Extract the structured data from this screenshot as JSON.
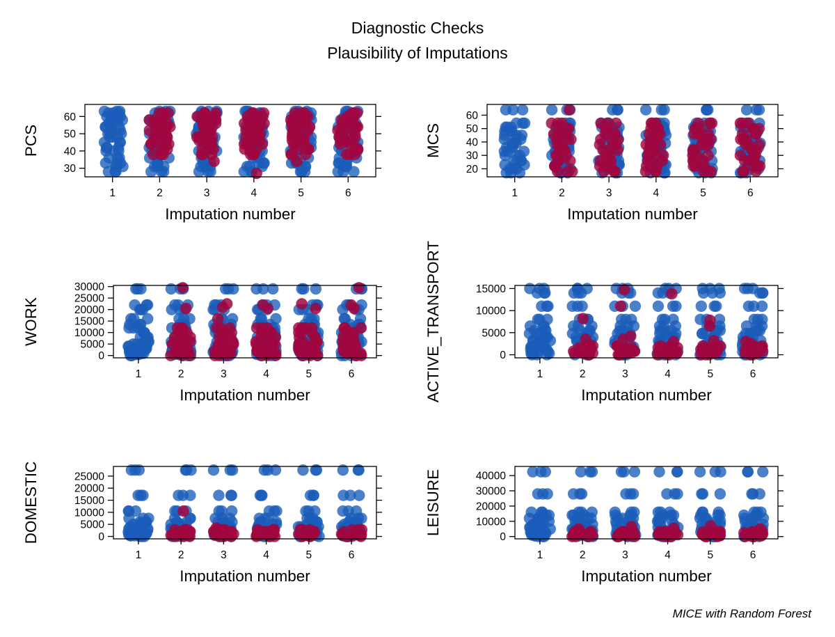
{
  "header": {
    "title": "Diagnostic Checks",
    "subtitle": "Plausibility of Imputations"
  },
  "footer": {
    "caption": "MICE with Random Forest"
  },
  "colors": {
    "observed": "#1a5cb8",
    "imputed": "#a0063f",
    "axis": "#000000"
  },
  "chart_data": [
    {
      "type": "scatter",
      "variable": "PCS",
      "ylabel": "PCS",
      "xlabel": "Imputation number",
      "categories": [
        "1",
        "2",
        "3",
        "4",
        "5",
        "6"
      ],
      "ylim": [
        25,
        67
      ],
      "yticks": [
        30,
        40,
        50,
        60
      ],
      "ytick_labels": [
        "30",
        "40",
        "50",
        "60"
      ],
      "observed": {
        "values": [
          28,
          31,
          33,
          36,
          40,
          42,
          45,
          48,
          50,
          52,
          54,
          56,
          58,
          60,
          62,
          63
        ]
      },
      "imputed": {
        "values": [
          38,
          41,
          44,
          46,
          48,
          50,
          52,
          54,
          56,
          58,
          60,
          62
        ],
        "outliers": {
          "2": [],
          "3": [
            34
          ],
          "4": [
            27
          ],
          "5": [
            34
          ],
          "6": []
        }
      }
    },
    {
      "type": "scatter",
      "variable": "MCS",
      "ylabel": "MCS",
      "xlabel": "Imputation number",
      "categories": [
        "1",
        "2",
        "3",
        "4",
        "5",
        "6"
      ],
      "ylim": [
        14,
        68
      ],
      "yticks": [
        20,
        30,
        40,
        50,
        60
      ],
      "ytick_labels": [
        "20",
        "30",
        "40",
        "50",
        "60"
      ],
      "observed": {
        "values": [
          17,
          20,
          23,
          26,
          30,
          33,
          36,
          39,
          42,
          45,
          48,
          51,
          54,
          64
        ]
      },
      "imputed": {
        "values": [
          18,
          22,
          26,
          30,
          34,
          38,
          42,
          46,
          50,
          54
        ],
        "outliers": {
          "2": [
            64
          ],
          "3": [],
          "4": [],
          "5": [],
          "6": []
        }
      }
    },
    {
      "type": "scatter",
      "variable": "WORK",
      "ylabel": "WORK",
      "xlabel": "Imputation number",
      "categories": [
        "1",
        "2",
        "3",
        "4",
        "5",
        "6"
      ],
      "ylim": [
        -1000,
        30500
      ],
      "yticks": [
        0,
        5000,
        10000,
        15000,
        20000,
        25000,
        30000
      ],
      "ytick_labels": [
        "0",
        "5000",
        "10000",
        "15000",
        "20000",
        "25000",
        "30000"
      ],
      "observed": {
        "values": [
          0,
          500,
          1000,
          1500,
          2000,
          3000,
          4000,
          5000,
          6000,
          8000,
          10000,
          12000,
          13500,
          16000,
          20000,
          22000,
          29000
        ]
      },
      "imputed": {
        "values": [
          0,
          1000,
          2000,
          3000,
          4000,
          5000,
          6000,
          8000,
          10000,
          12000
        ],
        "outliers": {
          "2": [
            20500,
            29500
          ],
          "3": [
            16000,
            21000,
            22500
          ],
          "4": [
            20500,
            22000
          ],
          "5": [
            12000,
            20500,
            22500
          ],
          "6": [
            20500,
            22000,
            29500
          ]
        }
      }
    },
    {
      "type": "scatter",
      "variable": "ACTIVE_TRANSPORT",
      "ylabel": "ACTIVE_TRANSPORT",
      "xlabel": "Imputation number",
      "categories": [
        "1",
        "2",
        "3",
        "4",
        "5",
        "6"
      ],
      "ylim": [
        -700,
        15700
      ],
      "yticks": [
        0,
        5000,
        10000,
        15000
      ],
      "ytick_labels": [
        "0",
        "5000",
        "10000",
        "15000"
      ],
      "observed": {
        "values": [
          0,
          300,
          700,
          1200,
          1800,
          2500,
          3200,
          4000,
          4800,
          5500,
          6500,
          8000,
          11000,
          14000,
          15000
        ]
      },
      "imputed": {
        "values": [
          0,
          400,
          800,
          1200,
          1600,
          2000
        ],
        "outliers": {
          "2": [
            3500,
            8200
          ],
          "3": [
            3500,
            4200,
            11000,
            14700
          ],
          "4": [
            3000,
            13800
          ],
          "5": [
            3200,
            6500,
            7800
          ],
          "6": [
            2500,
            3000
          ]
        }
      }
    },
    {
      "type": "scatter",
      "variable": "DOMESTIC",
      "ylabel": "DOMESTIC",
      "xlabel": "Imputation number",
      "categories": [
        "1",
        "2",
        "3",
        "4",
        "5",
        "6"
      ],
      "ylim": [
        -1000,
        29000
      ],
      "yticks": [
        0,
        5000,
        10000,
        15000,
        20000,
        25000
      ],
      "ytick_labels": [
        "0",
        "5000",
        "10000",
        "15000",
        "20000",
        "25000"
      ],
      "observed": {
        "values": [
          0,
          300,
          700,
          1200,
          1800,
          2500,
          3200,
          4000,
          5000,
          6000,
          7500,
          10500,
          17000,
          27500
        ]
      },
      "imputed": {
        "values": [
          0,
          500,
          1000,
          1500,
          2000,
          2800
        ],
        "outliers": {
          "2": [
            10500
          ],
          "3": [
            3500
          ],
          "4": [],
          "5": [],
          "6": []
        }
      }
    },
    {
      "type": "scatter",
      "variable": "LEISURE",
      "ylabel": "LEISURE",
      "xlabel": "Imputation number",
      "categories": [
        "1",
        "2",
        "3",
        "4",
        "5",
        "6"
      ],
      "ylim": [
        -1500,
        46000
      ],
      "yticks": [
        0,
        10000,
        20000,
        30000,
        40000
      ],
      "ytick_labels": [
        "0",
        "10000",
        "20000",
        "30000",
        "40000"
      ],
      "observed": {
        "values": [
          0,
          500,
          1000,
          2000,
          3000,
          4000,
          5000,
          6000,
          8000,
          10000,
          12000,
          14000,
          16000,
          28000,
          42500
        ]
      },
      "imputed": {
        "values": [
          0,
          600,
          1200,
          1800,
          2500,
          3200
        ],
        "outliers": {
          "2": [
            5000
          ],
          "3": [
            6500
          ],
          "4": [
            5500
          ],
          "5": [
            7000
          ],
          "6": [
            5000
          ]
        }
      }
    }
  ]
}
